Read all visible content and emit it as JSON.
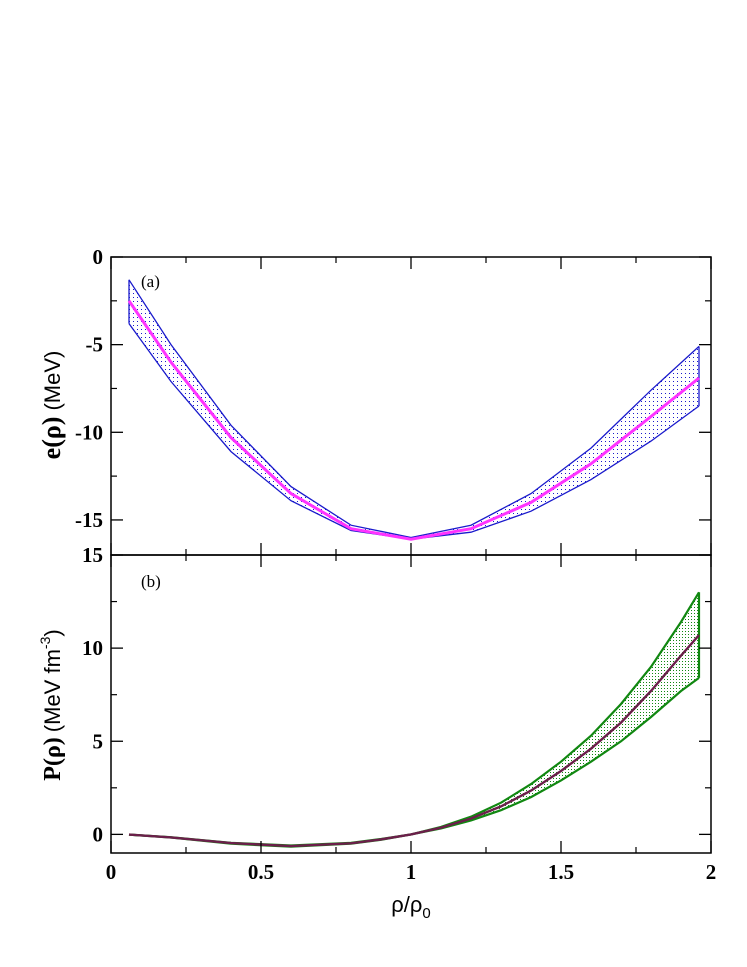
{
  "chart_data": [
    {
      "id": "a",
      "type": "line",
      "panel_label": "(a)",
      "ylabel_main": "e(ρ)",
      "ylabel_unit": "(MeV)",
      "xlabel": "",
      "xlim": [
        0,
        2
      ],
      "ylim": [
        -17,
        0
      ],
      "yticks": [
        0,
        -5,
        -10,
        -15
      ],
      "ytick_labels": [
        "0",
        "-5",
        "-10",
        "-15"
      ],
      "band_color": "#1a1acc",
      "central_color": "#ff33ff",
      "series": [
        {
          "name": "upper",
          "x": [
            0.06,
            0.2,
            0.4,
            0.6,
            0.8,
            1.0,
            1.2,
            1.4,
            1.6,
            1.8,
            1.96
          ],
          "y": [
            -1.3,
            -5.0,
            -9.6,
            -13.1,
            -15.3,
            -16.0,
            -15.3,
            -13.5,
            -10.9,
            -7.6,
            -5.1
          ]
        },
        {
          "name": "central",
          "x": [
            0.06,
            0.2,
            0.4,
            0.6,
            0.8,
            1.0,
            1.2,
            1.4,
            1.6,
            1.8,
            1.96
          ],
          "y": [
            -2.5,
            -6.0,
            -10.3,
            -13.5,
            -15.5,
            -16.1,
            -15.5,
            -14.0,
            -11.8,
            -9.1,
            -6.9
          ]
        },
        {
          "name": "lower",
          "x": [
            0.06,
            0.2,
            0.4,
            0.6,
            0.8,
            1.0,
            1.2,
            1.4,
            1.6,
            1.8,
            1.96
          ],
          "y": [
            -3.8,
            -7.1,
            -11.1,
            -13.9,
            -15.6,
            -16.1,
            -15.7,
            -14.5,
            -12.7,
            -10.5,
            -8.5
          ]
        }
      ]
    },
    {
      "id": "b",
      "type": "line",
      "panel_label": "(b)",
      "ylabel_main": "P(ρ)",
      "ylabel_unit": "(MeV fm",
      "ylabel_sup": "-3",
      "ylabel_close": ")",
      "xlabel": "ρ/ρ",
      "xlabel_sub": "0",
      "xlim": [
        0,
        2
      ],
      "ylim": [
        -1,
        15
      ],
      "yticks": [
        0,
        5,
        10,
        15
      ],
      "ytick_labels": [
        "0",
        "5",
        "10",
        "15"
      ],
      "xticks": [
        0,
        0.5,
        1,
        1.5,
        2
      ],
      "xtick_labels": [
        "0",
        "0.5",
        "1",
        "1.5",
        "2"
      ],
      "band_color": "#118811",
      "central_color": "#6b1f4a",
      "series": [
        {
          "name": "upper",
          "x": [
            0.06,
            0.2,
            0.4,
            0.6,
            0.8,
            0.9,
            1.0,
            1.1,
            1.2,
            1.3,
            1.4,
            1.5,
            1.6,
            1.7,
            1.8,
            1.9,
            1.96
          ],
          "y": [
            -0.01,
            -0.15,
            -0.45,
            -0.6,
            -0.45,
            -0.25,
            0.0,
            0.4,
            0.95,
            1.7,
            2.7,
            3.9,
            5.3,
            7.0,
            9.0,
            11.4,
            13.0
          ]
        },
        {
          "name": "central",
          "x": [
            0.06,
            0.2,
            0.4,
            0.6,
            0.8,
            0.9,
            1.0,
            1.1,
            1.2,
            1.3,
            1.4,
            1.5,
            1.6,
            1.7,
            1.8,
            1.9,
            1.96
          ],
          "y": [
            -0.01,
            -0.16,
            -0.47,
            -0.63,
            -0.48,
            -0.27,
            0.0,
            0.36,
            0.85,
            1.5,
            2.35,
            3.4,
            4.6,
            6.0,
            7.7,
            9.6,
            10.7
          ]
        },
        {
          "name": "lower",
          "x": [
            0.06,
            0.2,
            0.4,
            0.6,
            0.8,
            0.9,
            1.0,
            1.1,
            1.2,
            1.3,
            1.4,
            1.5,
            1.6,
            1.7,
            1.8,
            1.9,
            1.96
          ],
          "y": [
            -0.01,
            -0.17,
            -0.5,
            -0.66,
            -0.5,
            -0.29,
            0.0,
            0.32,
            0.75,
            1.3,
            2.0,
            2.9,
            3.9,
            5.0,
            6.3,
            7.7,
            8.4
          ]
        }
      ]
    }
  ]
}
